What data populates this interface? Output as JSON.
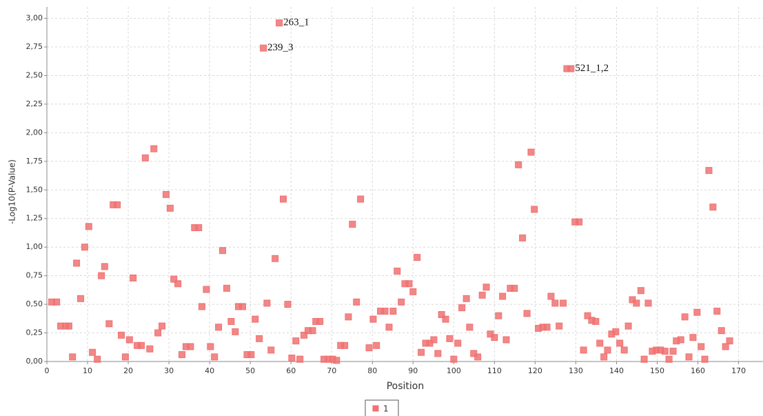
{
  "chart_data": {
    "type": "scatter",
    "xlabel": "Position",
    "ylabel": "-Log10(P-Value)",
    "xlim": [
      0,
      176
    ],
    "ylim": [
      0,
      3.1
    ],
    "xticks": [
      0,
      10,
      20,
      30,
      40,
      50,
      60,
      70,
      80,
      90,
      100,
      110,
      120,
      130,
      140,
      150,
      160,
      170
    ],
    "yticks": [
      {
        "value": 0,
        "label": "0,00"
      },
      {
        "value": 0.25,
        "label": "0,25"
      },
      {
        "value": 0.5,
        "label": "0,50"
      },
      {
        "value": 0.75,
        "label": "0,75"
      },
      {
        "value": 1,
        "label": "1,00"
      },
      {
        "value": 1.25,
        "label": "1,25"
      },
      {
        "value": 1.5,
        "label": "1,50"
      },
      {
        "value": 1.75,
        "label": "1,75"
      },
      {
        "value": 2,
        "label": "2,00"
      },
      {
        "value": 2.25,
        "label": "2,25"
      },
      {
        "value": 2.5,
        "label": "2,50"
      },
      {
        "value": 2.75,
        "label": "2,75"
      },
      {
        "value": 3,
        "label": "3,00"
      }
    ],
    "grid": true,
    "legend": "bottom",
    "annotations": [
      {
        "text": "263_1",
        "x": 57.1,
        "y": 2.96
      },
      {
        "text": "239_3",
        "x": 53.2,
        "y": 2.74
      },
      {
        "text": "521_1,2",
        "x": 128.8,
        "y": 2.56
      }
    ],
    "series": [
      {
        "name": "1",
        "color": "#f07272",
        "x": [
          1.2,
          2.4,
          3.4,
          4.6,
          5.4,
          6.3,
          7.3,
          8.3,
          9.3,
          10.3,
          11.2,
          12.4,
          13.4,
          14.2,
          15.3,
          16.3,
          17.3,
          18.3,
          19.3,
          20.3,
          21.2,
          22.2,
          23.2,
          24.2,
          25.3,
          26.3,
          27.3,
          28.3,
          29.3,
          30.3,
          31.2,
          32.2,
          33.2,
          34.2,
          35.3,
          36.3,
          37.3,
          38.1,
          39.2,
          40.2,
          41.2,
          42.2,
          43.2,
          44.2,
          45.3,
          46.3,
          47.1,
          48.1,
          49.2,
          50.2,
          51.2,
          52.2,
          53.2,
          54.1,
          55.1,
          56.1,
          57.1,
          58.1,
          59.2,
          60.2,
          61.2,
          62.2,
          63.2,
          64.2,
          65.3,
          66.1,
          67.1,
          68.1,
          69.2,
          70.2,
          71.2,
          72.2,
          73.2,
          74.1,
          75.1,
          76.1,
          77.1,
          79.2,
          80.2,
          81.0,
          82.0,
          83.1,
          84.1,
          85.1,
          86.1,
          87.1,
          88.0,
          89.0,
          90.0,
          91.0,
          92.0,
          93.1,
          94.1,
          95.1,
          96.1,
          97.0,
          98.0,
          99.0,
          100.0,
          101.0,
          102.0,
          103.1,
          103.9,
          104.9,
          105.9,
          107.0,
          108.0,
          109.0,
          110.0,
          111.0,
          112.0,
          112.9,
          113.9,
          114.9,
          115.9,
          116.9,
          118.0,
          119.0,
          119.8,
          120.8,
          121.9,
          122.9,
          123.9,
          124.9,
          125.9,
          126.9,
          127.8,
          128.8,
          129.8,
          130.8,
          131.9,
          132.9,
          133.9,
          134.9,
          135.9,
          136.9,
          137.8,
          138.8,
          139.8,
          140.8,
          141.9,
          142.9,
          143.9,
          144.9,
          146.0,
          146.8,
          147.8,
          148.8,
          149.8,
          150.8,
          151.9,
          152.9,
          153.9,
          154.7,
          155.8,
          156.8,
          157.8,
          158.8,
          159.8,
          160.8,
          161.7,
          162.7,
          163.7,
          164.7,
          165.8,
          166.8,
          167.8
        ],
        "values": [
          0.52,
          0.52,
          0.31,
          0.31,
          0.31,
          0.04,
          0.86,
          0.55,
          1.0,
          1.18,
          0.08,
          0.02,
          0.75,
          0.83,
          0.33,
          1.37,
          1.37,
          0.23,
          0.04,
          0.19,
          0.73,
          0.14,
          0.14,
          1.78,
          0.11,
          1.86,
          0.25,
          0.31,
          1.46,
          1.34,
          0.72,
          0.68,
          0.06,
          0.13,
          0.13,
          1.17,
          1.17,
          0.48,
          0.63,
          0.13,
          0.04,
          0.3,
          0.97,
          0.64,
          0.35,
          0.26,
          0.48,
          0.48,
          0.06,
          0.06,
          0.37,
          0.2,
          2.74,
          0.51,
          0.1,
          0.9,
          2.96,
          1.42,
          0.5,
          0.03,
          0.18,
          0.02,
          0.23,
          0.27,
          0.27,
          0.35,
          0.35,
          0.02,
          0.02,
          0.02,
          0.01,
          0.14,
          0.14,
          0.39,
          1.2,
          0.52,
          1.42,
          0.12,
          0.37,
          0.14,
          0.44,
          0.44,
          0.3,
          0.44,
          0.79,
          0.52,
          0.68,
          0.68,
          0.61,
          0.91,
          0.08,
          0.16,
          0.16,
          0.19,
          0.07,
          0.41,
          0.37,
          0.2,
          0.02,
          0.16,
          0.47,
          0.55,
          0.3,
          0.07,
          0.04,
          0.58,
          0.65,
          0.24,
          0.21,
          0.4,
          0.57,
          0.19,
          0.64,
          0.64,
          1.72,
          1.08,
          0.42,
          1.83,
          1.33,
          0.29,
          0.3,
          0.3,
          0.57,
          0.51,
          0.31,
          0.51,
          2.56,
          2.56,
          1.22,
          1.22,
          0.1,
          0.4,
          0.36,
          0.35,
          0.16,
          0.04,
          0.1,
          0.24,
          0.26,
          0.16,
          0.1,
          0.31,
          0.54,
          0.51,
          0.62,
          0.02,
          0.51,
          0.09,
          0.1,
          0.1,
          0.09,
          0.02,
          0.09,
          0.18,
          0.19,
          0.39,
          0.04,
          0.21,
          0.43,
          0.13,
          0.02,
          1.67,
          1.35,
          0.44,
          0.27,
          0.13,
          0.18
        ]
      }
    ]
  }
}
